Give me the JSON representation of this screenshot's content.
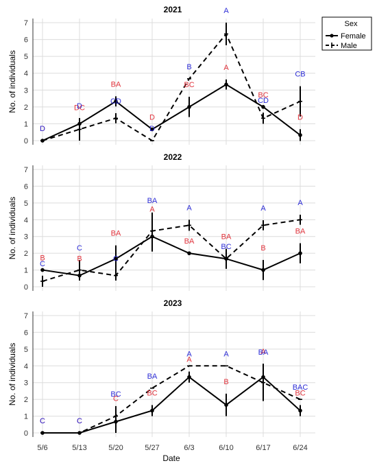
{
  "colors": {
    "letter_female": "#e0333c",
    "letter_male": "#2d2dd6",
    "grid": "#dcdcdc",
    "line": "#000000"
  },
  "legend": {
    "title": "Sex",
    "items": [
      "Female",
      "Male"
    ],
    "placement": "right"
  },
  "x_label": "Date",
  "y_label": "No. of individuals",
  "chart_data": {
    "type": "line",
    "categories": [
      "5/6",
      "5/13",
      "5/20",
      "5/27",
      "6/3",
      "6/10",
      "6/17",
      "6/24"
    ],
    "ylim": [
      0,
      7
    ],
    "yticks": [
      0,
      1,
      2,
      3,
      4,
      5,
      6,
      7
    ],
    "xlabel": "Date",
    "ylabel": "No. of individuals",
    "grid": true,
    "panels": [
      {
        "title": "2021",
        "series": [
          {
            "name": "Female",
            "style": "solid",
            "values": [
              0,
              1,
              2.33,
              0.67,
              2,
              3.33,
              2,
              0.33
            ],
            "err": [
              0,
              0.25,
              0.3,
              0,
              0.6,
              0.3,
              0,
              0.35
            ],
            "letters": [
              "D",
              "DC",
              "BA",
              "D",
              "BC",
              "A",
              "BC",
              "D"
            ]
          },
          {
            "name": "Male",
            "style": "dashed",
            "values": [
              0,
              0.67,
              1.33,
              0,
              3.67,
              6.33,
              1.33,
              2.33
            ],
            "err": [
              0,
              0.67,
              0.3,
              0,
              0,
              0.67,
              0.33,
              0.9
            ],
            "letters": [
              "D",
              "D",
              "CD",
              "D",
              "B",
              "A",
              "CD",
              "CB"
            ]
          }
        ]
      },
      {
        "title": "2022",
        "series": [
          {
            "name": "Female",
            "style": "solid",
            "values": [
              1,
              0.67,
              1.67,
              3,
              2,
              1.67,
              1,
              2
            ],
            "err": [
              0,
              0.3,
              0.8,
              0.9,
              0,
              0.6,
              0.6,
              0.6
            ],
            "letters": [
              "B",
              "B",
              "BA",
              "A",
              "BA",
              "BA",
              "B",
              "BA"
            ]
          },
          {
            "name": "Male",
            "style": "dashed",
            "values": [
              0.33,
              1,
              0.67,
              3.33,
              3.67,
              1.67,
              3.67,
              4
            ],
            "err": [
              0.33,
              0.6,
              0.3,
              1.1,
              0.33,
              0,
              0.3,
              0.3
            ],
            "letters": [
              "C",
              "C",
              "C",
              "BA",
              "A",
              "BC",
              "A",
              "A"
            ]
          }
        ]
      },
      {
        "title": "2023",
        "series": [
          {
            "name": "Female",
            "style": "solid",
            "values": [
              0,
              0,
              0.67,
              1.33,
              3.33,
              1.67,
              3.33,
              1.33
            ],
            "err": [
              0,
              0,
              0.67,
              0.33,
              0.33,
              0.67,
              0.8,
              0.33
            ],
            "letters": [
              "C",
              "C",
              "C",
              "BC",
              "A",
              "B",
              "A",
              "BC"
            ]
          },
          {
            "name": "Male",
            "style": "dashed",
            "values": [
              0,
              0,
              1,
              2.67,
              4,
              4,
              3,
              2
            ],
            "err": [
              0,
              0,
              0.6,
              0,
              0,
              0,
              1.1,
              0
            ],
            "letters": [
              "C",
              "C",
              "BC",
              "BA",
              "A",
              "A",
              "BA",
              "BAC"
            ]
          }
        ]
      }
    ]
  }
}
